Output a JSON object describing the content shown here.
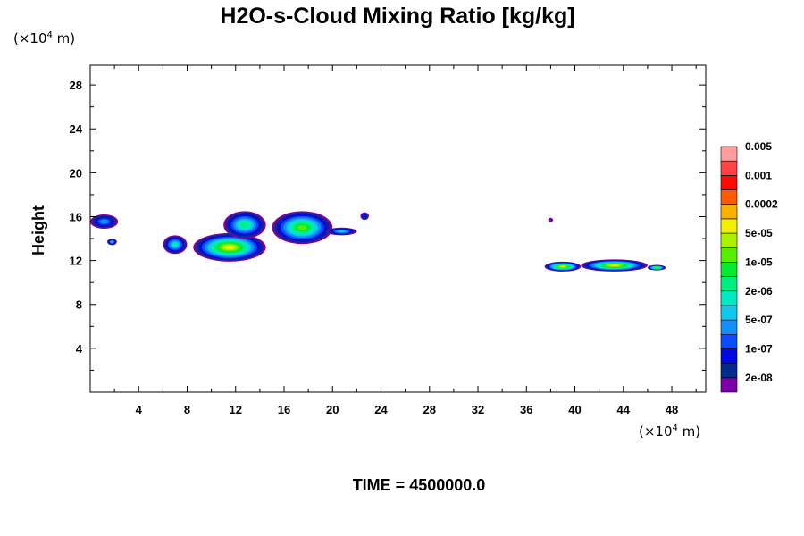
{
  "chart_data": {
    "type": "heatmap",
    "title": "H2O-s-Cloud Mixing Ratio [kg/kg]",
    "ylabel": "Height",
    "xlabel": "",
    "x_unit": {
      "prefix": "(×10",
      "exp": "4",
      "suffix": " m)"
    },
    "y_unit": {
      "prefix": "(×10",
      "exp": "4",
      "suffix": " m)"
    },
    "xlim": [
      0,
      50.8
    ],
    "ylim": [
      0,
      29.8
    ],
    "x_ticks": [
      4,
      8,
      12,
      16,
      20,
      24,
      28,
      32,
      36,
      40,
      44,
      48
    ],
    "y_ticks": [
      4,
      8,
      12,
      16,
      20,
      24,
      28
    ],
    "footer": "TIME = 4500000.0",
    "colorbar": {
      "colors": [
        "#7b00a8",
        "#002a8c",
        "#0008e0",
        "#0a4dff",
        "#1290f8",
        "#10c8ec",
        "#00eac4",
        "#00ee80",
        "#08e82e",
        "#55ee00",
        "#a8f200",
        "#f0f000",
        "#f9b000",
        "#ff5a00",
        "#ff0a00",
        "#ff4242",
        "#ff9c9c"
      ],
      "labels": [
        "2e-08",
        "1e-07",
        "5e-07",
        "2e-06",
        "1e-05",
        "5e-05",
        "0.0002",
        "0.001",
        "0.005"
      ]
    },
    "cloud_regions": [
      {
        "x": [
          0.0,
          2.3
        ],
        "y": [
          14.9,
          16.2
        ],
        "max_level": 4
      },
      {
        "x": [
          1.4,
          2.2
        ],
        "y": [
          13.4,
          14.0
        ],
        "max_level": 5
      },
      {
        "x": [
          6.0,
          8.0
        ],
        "y": [
          12.6,
          14.3
        ],
        "max_level": 6
      },
      {
        "x": [
          8.5,
          14.5
        ],
        "y": [
          11.9,
          14.5
        ],
        "max_level": 11
      },
      {
        "x": [
          11.0,
          14.5
        ],
        "y": [
          14.0,
          16.5
        ],
        "max_level": 7
      },
      {
        "x": [
          15.0,
          20.0
        ],
        "y": [
          13.5,
          16.5
        ],
        "max_level": 9
      },
      {
        "x": [
          19.5,
          22.0
        ],
        "y": [
          14.3,
          15.0
        ],
        "max_level": 5
      },
      {
        "x": [
          22.3,
          23.0
        ],
        "y": [
          15.7,
          16.4
        ],
        "max_level": 2
      },
      {
        "x": [
          37.8,
          38.2
        ],
        "y": [
          15.5,
          15.9
        ],
        "max_level": 0
      },
      {
        "x": [
          37.5,
          40.5
        ],
        "y": [
          11.0,
          11.9
        ],
        "max_level": 11
      },
      {
        "x": [
          40.5,
          46.0
        ],
        "y": [
          11.0,
          12.1
        ],
        "max_level": 11
      },
      {
        "x": [
          46.0,
          47.5
        ],
        "y": [
          11.1,
          11.6
        ],
        "max_level": 10
      }
    ]
  }
}
